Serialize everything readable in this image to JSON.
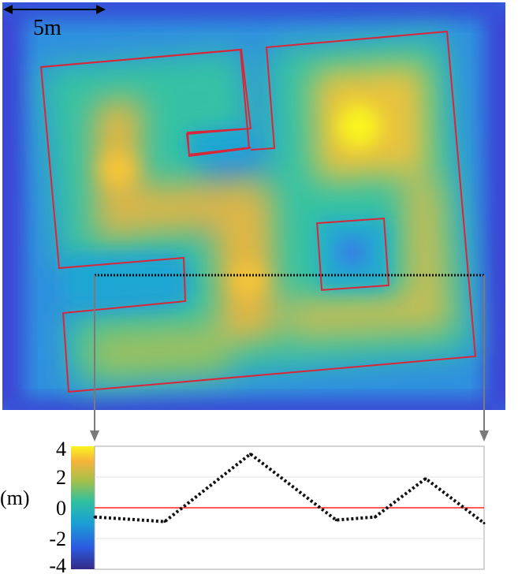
{
  "scale_bar": {
    "label": "5m"
  },
  "colors": {
    "field_low": "#3d3fd0",
    "field_high": "#f9f51e",
    "boundary": "#d8263a",
    "section_line": "#111111",
    "zero_line": "#ff2020",
    "connector": "#7a7a7a",
    "frame": "#a8a8a8"
  },
  "chart_data": {
    "type": "line",
    "ylabel": "(m)",
    "ylim": [
      -4,
      4
    ],
    "yticks": [
      4,
      2,
      0,
      -2,
      -4
    ],
    "colorbar": {
      "min": -4,
      "max": 4,
      "ticks": [
        4,
        2,
        0,
        -2,
        -4
      ]
    },
    "reference_line": 0,
    "grid": true,
    "series": [
      {
        "style": "dotted",
        "x": [
          0,
          0.18,
          0.4,
          0.62,
          0.72,
          0.85,
          1.0
        ],
        "values": [
          -0.6,
          -0.9,
          3.5,
          -0.8,
          -0.6,
          1.9,
          -1.0
        ]
      }
    ]
  }
}
